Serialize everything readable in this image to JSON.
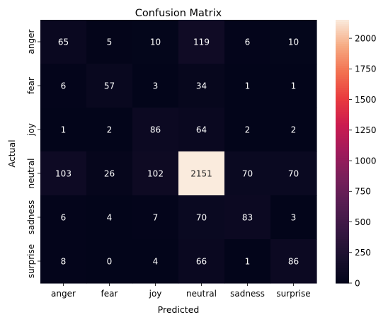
{
  "chart_data": {
    "type": "heatmap",
    "title": "Confusion Matrix",
    "xlabel": "Predicted",
    "ylabel": "Actual",
    "x_categories": [
      "anger",
      "fear",
      "joy",
      "neutral",
      "sadness",
      "surprise"
    ],
    "y_categories": [
      "anger",
      "fear",
      "joy",
      "neutral",
      "sadness",
      "surprise"
    ],
    "values": [
      [
        65,
        5,
        10,
        119,
        6,
        10
      ],
      [
        6,
        57,
        3,
        34,
        1,
        1
      ],
      [
        1,
        2,
        86,
        64,
        2,
        2
      ],
      [
        103,
        26,
        102,
        2151,
        70,
        70
      ],
      [
        6,
        4,
        7,
        70,
        83,
        3
      ],
      [
        8,
        0,
        4,
        66,
        1,
        86
      ]
    ],
    "colorbar": {
      "min": 0,
      "max": 2151,
      "ticks": [
        0,
        250,
        500,
        750,
        1000,
        1250,
        1500,
        1750,
        2000
      ],
      "colormap": "rocket"
    },
    "grid": false,
    "legend": "colorbar-right"
  }
}
